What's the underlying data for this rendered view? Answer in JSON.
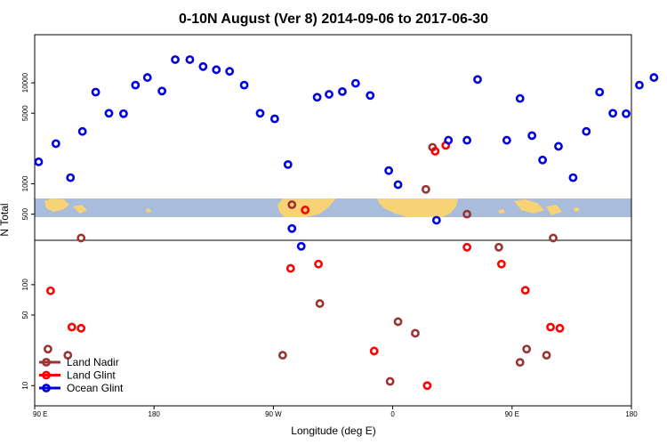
{
  "chart_data": {
    "type": "scatter",
    "title": "0-10N August (Ver 8)   2014-09-06 to 2017-06-30",
    "xlabel": "Longitude (deg E)",
    "ylabel": "N Total",
    "x_ticks": [
      {
        "value": 90,
        "label": "90 E"
      },
      {
        "value": 180,
        "label": "180"
      },
      {
        "value": 270,
        "label": "90 W"
      },
      {
        "value": 360,
        "label": "0"
      },
      {
        "value": 450,
        "label": "90 E"
      },
      {
        "value": 540,
        "label": "180"
      }
    ],
    "xlim": [
      90,
      540
    ],
    "y_scale": "log",
    "ylim": [
      6.3,
      30000
    ],
    "y_ticks": [
      {
        "value": 10,
        "label": "10"
      },
      {
        "value": 50,
        "label": "50"
      },
      {
        "value": 100,
        "label": "100"
      },
      {
        "value": 500,
        "label": "500"
      },
      {
        "value": 1000,
        "label": "1000"
      },
      {
        "value": 5000,
        "label": "5000"
      },
      {
        "value": 10000,
        "label": "10000"
      }
    ],
    "legend_position": "bottom-left",
    "series": [
      {
        "name": "Land Nadir",
        "color": "#9c3333",
        "points": [
          [
            100,
            23
          ],
          [
            115,
            20
          ],
          [
            125,
            290
          ],
          [
            277,
            20
          ],
          [
            284,
            620
          ],
          [
            305,
            65
          ],
          [
            358,
            11
          ],
          [
            364,
            43
          ],
          [
            377,
            33
          ],
          [
            385,
            880
          ],
          [
            390,
            2300
          ],
          [
            416,
            500
          ],
          [
            440,
            235
          ],
          [
            456,
            17
          ],
          [
            461,
            23
          ],
          [
            476,
            20
          ],
          [
            481,
            290
          ]
        ]
      },
      {
        "name": "Land Glint",
        "color": "#ff0000",
        "points": [
          [
            102,
            87
          ],
          [
            118,
            38
          ],
          [
            125,
            37
          ],
          [
            283,
            145
          ],
          [
            294,
            550
          ],
          [
            304,
            160
          ],
          [
            346,
            22
          ],
          [
            386,
            10
          ],
          [
            392,
            2100
          ],
          [
            400,
            2400
          ],
          [
            416,
            235
          ],
          [
            442,
            160
          ],
          [
            460,
            88
          ],
          [
            479,
            38
          ],
          [
            486,
            37
          ]
        ]
      },
      {
        "name": "Ocean Glint",
        "color": "#0000e0",
        "points": [
          [
            93,
            1650
          ],
          [
            106,
            2500
          ],
          [
            117,
            1150
          ],
          [
            126,
            3300
          ],
          [
            136,
            8100
          ],
          [
            146,
            5000
          ],
          [
            157,
            4950
          ],
          [
            166,
            9500
          ],
          [
            175,
            11300
          ],
          [
            186,
            8300
          ],
          [
            196,
            17000
          ],
          [
            207,
            17000
          ],
          [
            217,
            14500
          ],
          [
            227,
            13500
          ],
          [
            237,
            13000
          ],
          [
            248,
            9500
          ],
          [
            260,
            5000
          ],
          [
            271,
            4400
          ],
          [
            281,
            1550
          ],
          [
            284,
            360
          ],
          [
            291,
            240
          ],
          [
            303,
            7200
          ],
          [
            312,
            7700
          ],
          [
            322,
            8200
          ],
          [
            332,
            9900
          ],
          [
            343,
            7500
          ],
          [
            357,
            1350
          ],
          [
            364,
            980
          ],
          [
            393,
            435
          ],
          [
            402,
            2700
          ],
          [
            416,
            2700
          ],
          [
            424,
            10800
          ],
          [
            446,
            2700
          ],
          [
            456,
            7000
          ],
          [
            465,
            3000
          ],
          [
            473,
            1720
          ],
          [
            485,
            2350
          ],
          [
            496,
            1150
          ],
          [
            506,
            3300
          ],
          [
            516,
            8100
          ],
          [
            526,
            5000
          ],
          [
            536,
            4950
          ],
          [
            546,
            9500
          ],
          [
            557,
            11300
          ]
        ]
      }
    ]
  }
}
